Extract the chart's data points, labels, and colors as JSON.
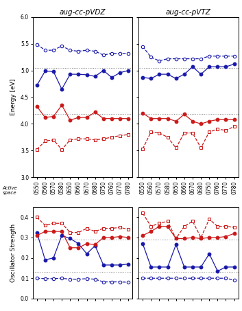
{
  "title_left": "aug-cc-pVDZ",
  "title_right": "aug-cc-pVTZ",
  "ylabel_energy": "Energy [eV]",
  "ylabel_osc": "Oscillator Strength",
  "x_labels": [
    "0550",
    "0560",
    "0570",
    "0580",
    "0650",
    "0660",
    "0670",
    "0680",
    "0750",
    "0760",
    "0770",
    "0780"
  ],
  "energy_ylim": [
    3.0,
    6.0
  ],
  "osc_ylim": [
    0.0,
    0.45
  ],
  "energy_yticks": [
    3.0,
    3.5,
    4.0,
    4.5,
    5.0,
    5.5,
    6.0
  ],
  "osc_yticks": [
    0.0,
    0.1,
    0.2,
    0.3,
    0.4
  ],
  "energy_hline1": 5.05,
  "energy_hline2": 4.18,
  "osc_hline1": 0.29,
  "osc_hline2": 0.13,
  "VDZ_blue_solid": [
    4.72,
    4.99,
    4.98,
    4.65,
    4.93,
    4.93,
    4.92,
    4.89,
    5.0,
    4.87,
    4.96,
    5.0
  ],
  "VDZ_blue_dashed": [
    5.49,
    5.38,
    5.38,
    5.46,
    5.38,
    5.36,
    5.38,
    5.36,
    5.29,
    5.32,
    5.32,
    5.32
  ],
  "VDZ_red_solid": [
    4.33,
    4.12,
    4.14,
    4.35,
    4.07,
    4.12,
    4.12,
    4.22,
    4.1,
    4.1,
    4.1,
    4.1
  ],
  "VDZ_red_dashed": [
    3.52,
    3.68,
    3.7,
    3.52,
    3.7,
    3.72,
    3.72,
    3.7,
    3.72,
    3.75,
    3.78,
    3.8
  ],
  "VTZ_blue_solid": [
    4.87,
    4.85,
    4.93,
    4.93,
    4.85,
    4.93,
    5.07,
    4.93,
    5.07,
    5.07,
    5.07,
    5.12
  ],
  "VTZ_blue_dashed": [
    5.45,
    5.25,
    5.18,
    5.22,
    5.22,
    5.22,
    5.22,
    5.22,
    5.27,
    5.27,
    5.27,
    5.27
  ],
  "VTZ_red_solid": [
    4.2,
    4.1,
    4.1,
    4.1,
    4.05,
    4.18,
    4.05,
    4.0,
    4.05,
    4.08,
    4.08,
    4.08
  ],
  "VTZ_red_dashed": [
    3.53,
    3.85,
    3.83,
    3.75,
    3.55,
    3.83,
    3.83,
    3.55,
    3.85,
    3.9,
    3.88,
    3.95
  ],
  "VDZ_osc_blue_solid": [
    0.325,
    0.19,
    0.2,
    0.31,
    0.295,
    0.27,
    0.22,
    0.26,
    0.165,
    0.165,
    0.165,
    0.17
  ],
  "VDZ_osc_blue_dashed": [
    0.1,
    0.098,
    0.098,
    0.1,
    0.095,
    0.095,
    0.098,
    0.095,
    0.082,
    0.082,
    0.082,
    0.08
  ],
  "VDZ_osc_red_solid": [
    0.31,
    0.33,
    0.33,
    0.33,
    0.25,
    0.25,
    0.27,
    0.265,
    0.3,
    0.3,
    0.305,
    0.3
  ],
  "VDZ_osc_red_dashed": [
    0.4,
    0.36,
    0.37,
    0.37,
    0.325,
    0.325,
    0.345,
    0.33,
    0.345,
    0.345,
    0.35,
    0.34
  ],
  "VTZ_osc_blue_solid": [
    0.27,
    0.155,
    0.155,
    0.155,
    0.265,
    0.155,
    0.155,
    0.155,
    0.22,
    0.135,
    0.155,
    0.155
  ],
  "VTZ_osc_blue_dashed": [
    0.1,
    0.1,
    0.1,
    0.1,
    0.1,
    0.1,
    0.1,
    0.1,
    0.1,
    0.1,
    0.1,
    0.09
  ],
  "VTZ_osc_red_solid": [
    0.31,
    0.33,
    0.355,
    0.355,
    0.295,
    0.295,
    0.3,
    0.295,
    0.3,
    0.3,
    0.305,
    0.32
  ],
  "VTZ_osc_red_dashed": [
    0.42,
    0.355,
    0.37,
    0.38,
    0.295,
    0.355,
    0.38,
    0.3,
    0.39,
    0.355,
    0.355,
    0.35
  ],
  "blue_color": "#1a1aaa",
  "red_color": "#cc1a1a"
}
